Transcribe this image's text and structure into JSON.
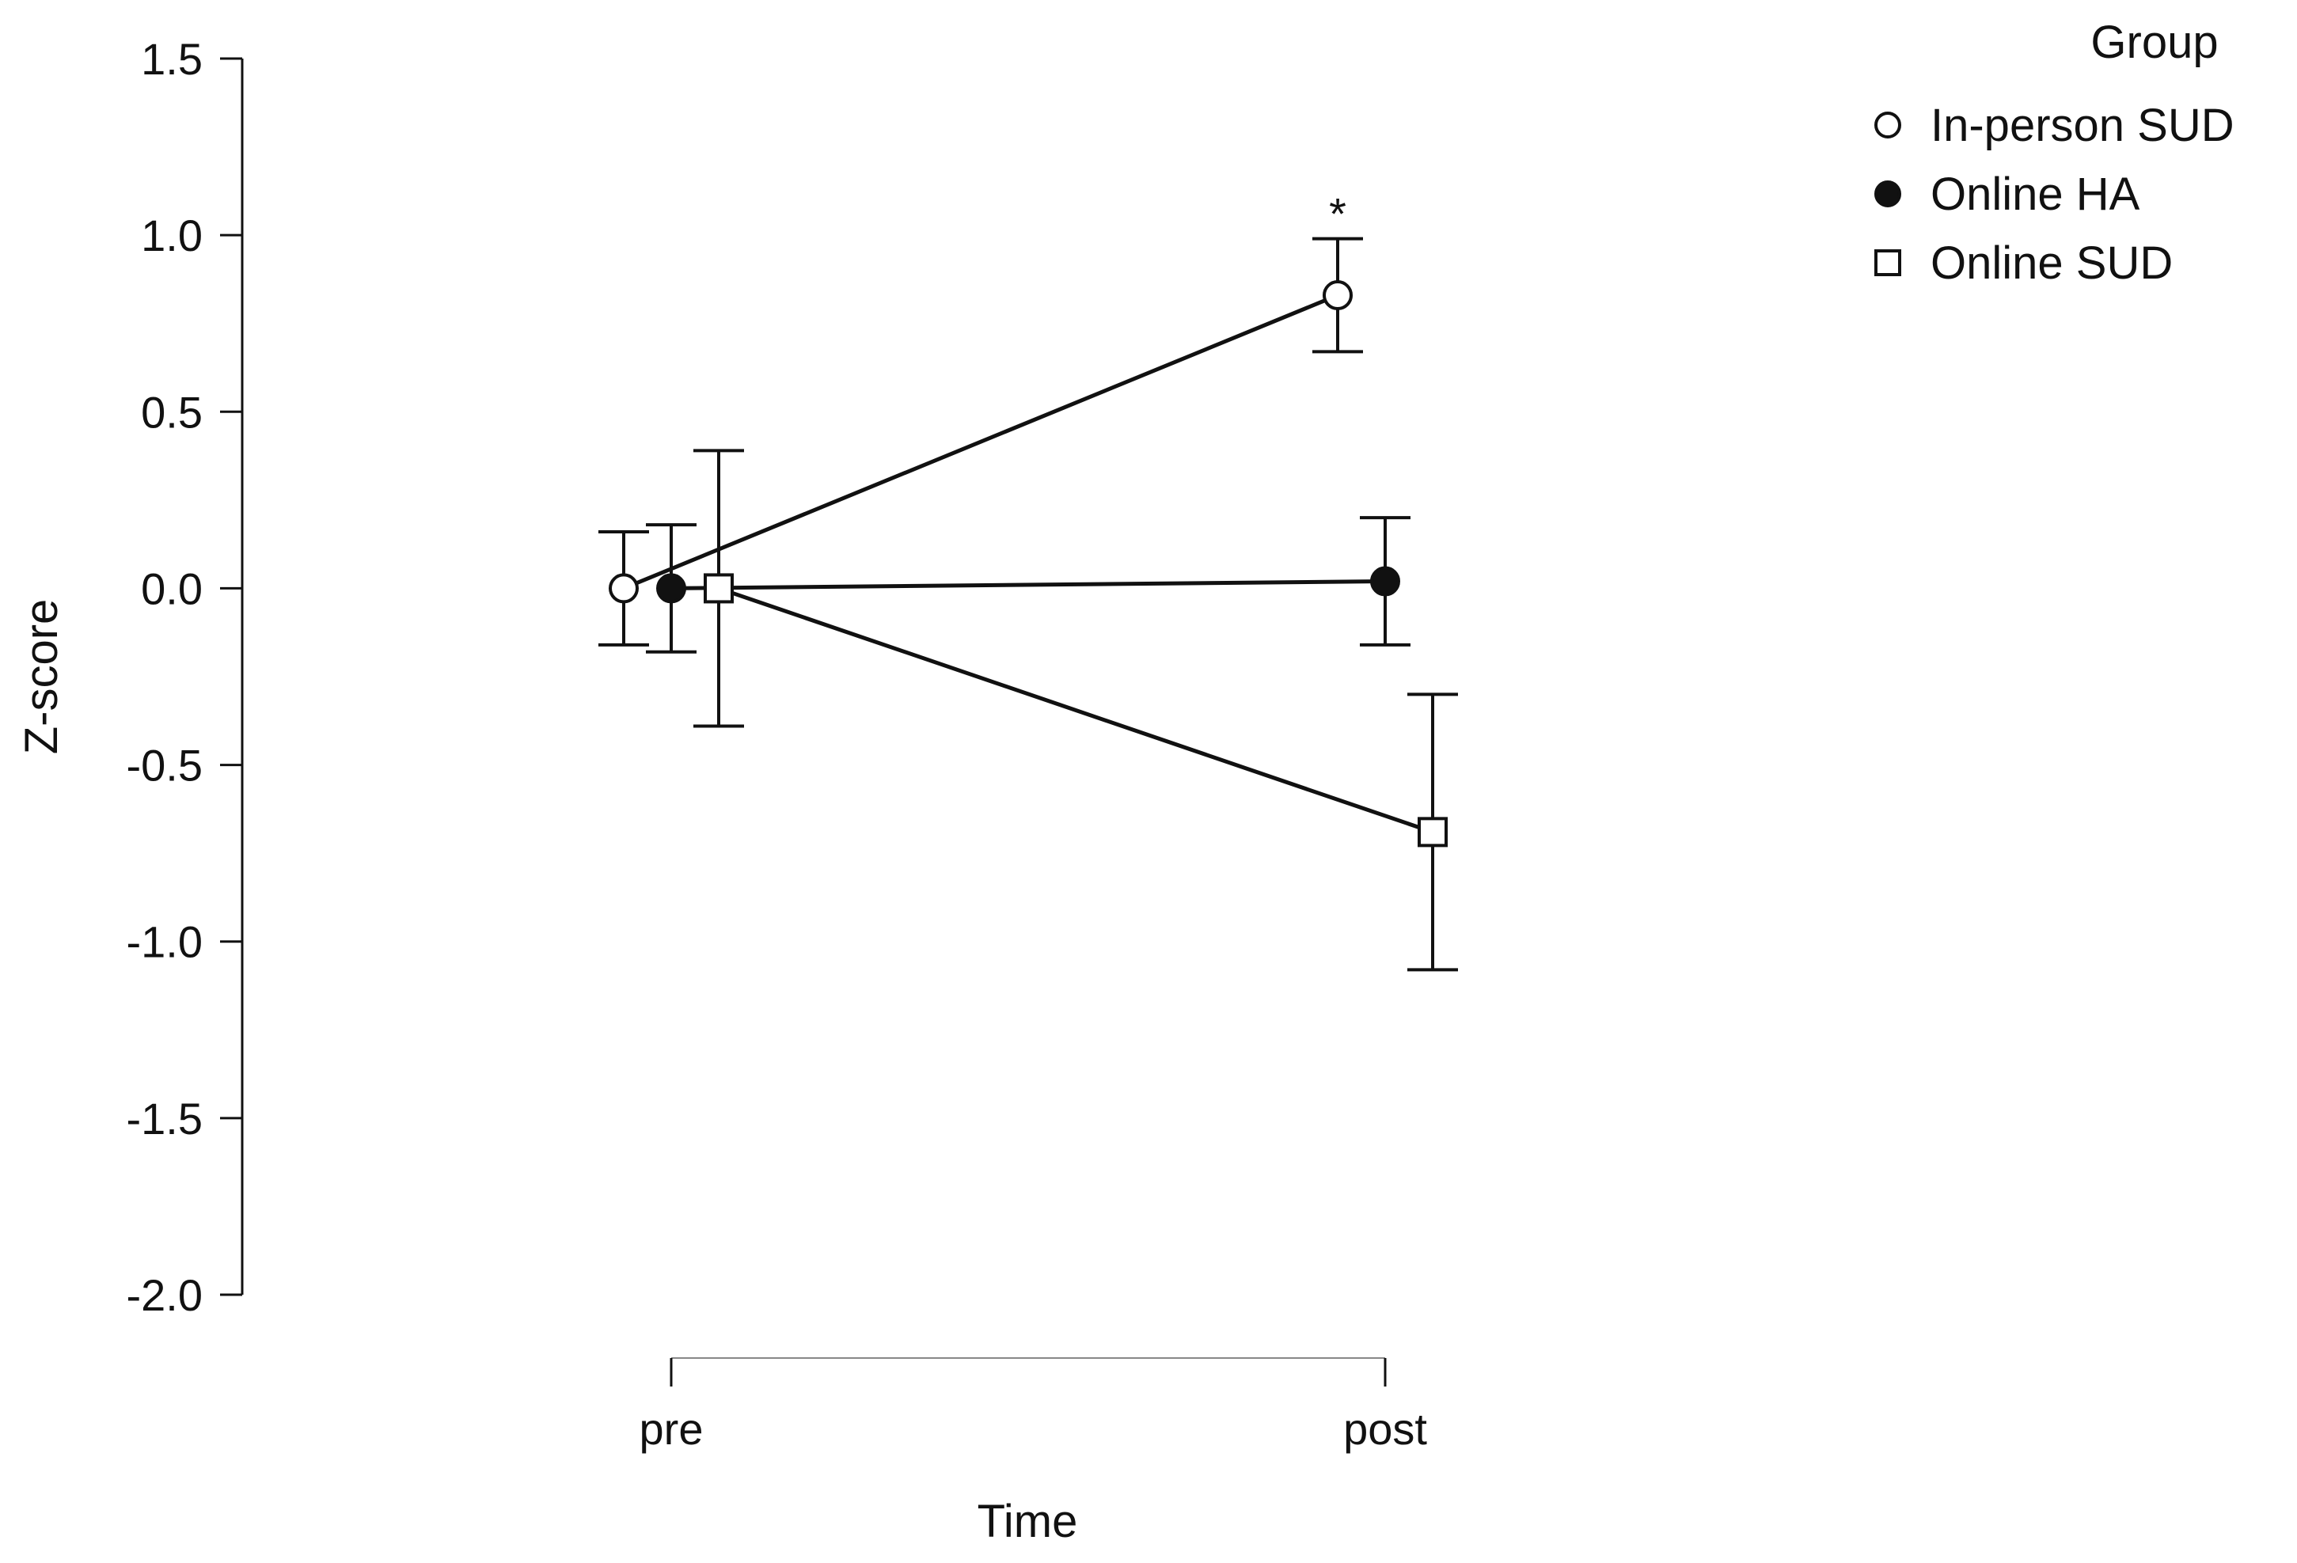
{
  "chart_data": {
    "type": "line",
    "title": "",
    "xlabel": "Time",
    "ylabel": "Z-score",
    "categories": [
      "pre",
      "post"
    ],
    "ylim": [
      -2.0,
      1.5
    ],
    "yticks": [
      "1.5",
      "1.0",
      "0.5",
      "0.0",
      "-0.5",
      "-1.0",
      "-1.5",
      "-2.0"
    ],
    "grid": false,
    "legend_title": "Group",
    "legend_position": "top-right",
    "series": [
      {
        "name": "In-person SUD",
        "marker": "open-circle",
        "values": [
          0.0,
          0.83
        ],
        "error_low": [
          -0.16,
          0.67
        ],
        "error_high": [
          0.16,
          0.99
        ]
      },
      {
        "name": "Online HA",
        "marker": "filled-circle",
        "values": [
          0.0,
          0.02
        ],
        "error_low": [
          -0.18,
          -0.16
        ],
        "error_high": [
          0.18,
          0.2
        ]
      },
      {
        "name": "Online SUD",
        "marker": "open-square",
        "values": [
          0.0,
          -0.69
        ],
        "error_low": [
          -0.39,
          -1.08
        ],
        "error_high": [
          0.39,
          -0.3
        ]
      }
    ],
    "annotations": [
      {
        "text": "*",
        "series": "In-person SUD",
        "category": "post"
      }
    ]
  }
}
